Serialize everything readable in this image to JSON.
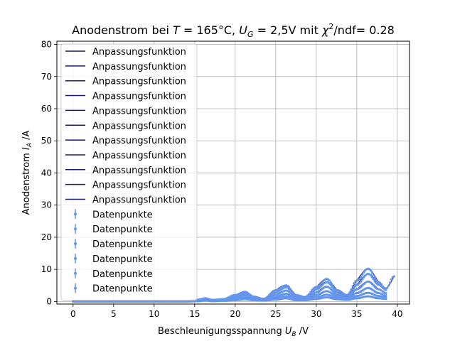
{
  "chart_data": {
    "type": "line",
    "title_parts": {
      "prefix": "Anodenstrom bei ",
      "T_sym": "T",
      "T_val": " = 165°C, ",
      "U_sym": "U",
      "U_sub": "G",
      "U_val": " = 2,5V mit ",
      "chi_sym": "χ",
      "chi_sup": "2",
      "suffix": "/ndf= 0.28"
    },
    "xlabel_parts": {
      "text": "Beschleunigungsspannung ",
      "sym": "U",
      "sub": "B",
      "unit": " /V"
    },
    "ylabel_parts": {
      "text": "Anodenstrom ",
      "sym": "I",
      "sub": "A",
      "unit": " /A"
    },
    "xlim": [
      -2,
      41.5
    ],
    "ylim": [
      -0.8,
      81
    ],
    "xticks": [
      0,
      5,
      10,
      15,
      20,
      25,
      30,
      35,
      40
    ],
    "yticks": [
      0,
      10,
      20,
      30,
      40,
      50,
      60,
      70,
      80
    ],
    "grid": true,
    "legend_position": "upper-left",
    "fit_color": "#191970",
    "data_color": "#6495ed",
    "fit_label": "Anpassungsfunktion",
    "data_label": "Datenpunkte",
    "fit_series_count": 11,
    "series": [
      {
        "x": [
          0,
          5,
          10,
          14,
          15.5,
          16.3,
          17.2,
          18.5,
          20,
          21.2,
          22.3,
          23.5,
          25,
          26.3,
          27.5,
          28.6,
          30,
          31.3,
          32.6,
          33.8,
          35,
          36.4,
          37.7,
          38.6,
          39.6
        ],
        "y": [
          0,
          0,
          0,
          0.1,
          0.6,
          1.0,
          0.5,
          0.7,
          2.0,
          3.0,
          1.5,
          0.8,
          3.5,
          5.0,
          2.0,
          1.4,
          4.5,
          7.0,
          3.5,
          2.0,
          6.5,
          10.2,
          6.0,
          4.0,
          7.8
        ]
      },
      {
        "x": [
          0,
          5,
          10,
          14,
          15.5,
          16.3,
          17.2,
          18.5,
          20,
          21.2,
          22.3,
          23.5,
          25,
          26.3,
          27.5,
          28.6,
          30,
          31.3,
          32.6,
          33.8,
          35,
          36.4,
          37.7,
          38.6
        ],
        "y": [
          0,
          0,
          0,
          0.1,
          0.5,
          0.9,
          0.4,
          0.6,
          1.7,
          2.6,
          1.3,
          0.7,
          3.0,
          4.4,
          1.8,
          1.2,
          3.8,
          6.0,
          3.0,
          1.8,
          5.2,
          8.6,
          5.2,
          3.6
        ]
      },
      {
        "x": [
          0,
          5,
          10,
          14,
          15.5,
          16.3,
          17.2,
          18.5,
          20,
          21.2,
          22.3,
          23.5,
          25,
          26.3,
          27.5,
          28.6,
          30,
          31.3,
          32.6,
          33.8,
          35,
          36.4,
          37.7,
          38.6
        ],
        "y": [
          0,
          0,
          0,
          0.1,
          0.4,
          0.8,
          0.3,
          0.5,
          1.3,
          2.1,
          1.0,
          0.6,
          2.2,
          3.4,
          1.4,
          1.0,
          2.8,
          4.6,
          2.2,
          1.4,
          3.8,
          6.2,
          3.8,
          2.6
        ]
      },
      {
        "x": [
          0,
          5,
          10,
          14,
          15.5,
          16.3,
          17.2,
          18.5,
          20,
          21.2,
          22.3,
          23.5,
          25,
          26.3,
          27.5,
          28.6,
          30,
          31.3,
          32.6,
          33.8,
          35,
          36.4,
          37.7,
          38.6
        ],
        "y": [
          0,
          0,
          0,
          0.1,
          0.3,
          0.6,
          0.3,
          0.4,
          1.0,
          1.6,
          0.8,
          0.5,
          1.5,
          2.4,
          1.0,
          0.8,
          2.0,
          3.2,
          1.6,
          1.1,
          2.6,
          4.2,
          2.6,
          1.9
        ]
      },
      {
        "x": [
          0,
          5,
          10,
          14,
          15.5,
          16.3,
          17.2,
          18.5,
          20,
          21.2,
          22.3,
          23.5,
          25,
          26.3,
          27.5,
          28.6,
          30,
          31.3,
          32.6,
          33.8,
          35,
          36.4,
          37.7,
          38.6
        ],
        "y": [
          0,
          0,
          0,
          0.0,
          0.2,
          0.5,
          0.2,
          0.3,
          0.7,
          1.1,
          0.6,
          0.4,
          1.0,
          1.6,
          0.7,
          0.6,
          1.3,
          2.1,
          1.1,
          0.8,
          1.7,
          2.7,
          1.7,
          1.3
        ]
      },
      {
        "x": [
          0,
          5,
          10,
          14,
          15.5,
          16.3,
          17.2,
          18.5,
          20,
          21.2,
          22.3,
          23.5,
          25,
          26.3,
          27.5,
          28.6,
          30,
          31.3,
          32.6,
          33.8,
          35,
          36.4,
          37.7,
          38.6
        ],
        "y": [
          0,
          0,
          0,
          0.0,
          0.1,
          0.3,
          0.1,
          0.2,
          0.4,
          0.7,
          0.4,
          0.3,
          0.6,
          1.0,
          0.4,
          0.4,
          0.8,
          1.3,
          0.7,
          0.5,
          1.0,
          1.6,
          1.0,
          0.8
        ]
      }
    ]
  }
}
